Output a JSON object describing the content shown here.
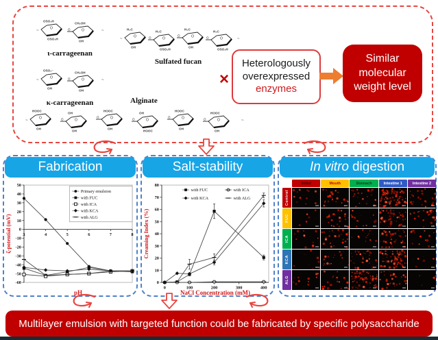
{
  "top": {
    "structures": [
      {
        "name": "iota-carrageenan",
        "label": "ι-carrageenan",
        "rings": 2,
        "top_labels": [
          "OSO₃H",
          "CH₂OH"
        ],
        "bottom_labels": [
          "OSO₃H",
          "OH"
        ]
      },
      {
        "name": "kappa-carrageenan",
        "label": "κ-carrageenan",
        "rings": 2,
        "top_labels": [
          "OSO₃⁻",
          "CH₂OH"
        ],
        "bottom_labels": [
          "OH",
          "OH"
        ]
      },
      {
        "name": "sulfated-fucan",
        "label": "Sulfated fucan",
        "rings": 4,
        "top_labels": [
          "H₃C",
          "H₃C",
          "H₃C",
          "H₃C"
        ],
        "bottom_labels": [
          "OH",
          "OSO₃H",
          "OH",
          "OSO₃H"
        ]
      },
      {
        "name": "alginate",
        "label": "Alginate",
        "rings": 6,
        "top_labels": [
          "HOOC",
          "OH",
          "HOOC",
          "OH",
          "HOOC",
          "HOOC"
        ],
        "bottom_labels": [
          "OH",
          "OH",
          "OH",
          "HOOC",
          "OH",
          "OH"
        ]
      }
    ],
    "cross": "×",
    "enzyme_box": {
      "line1": "Heterologously",
      "line2": "overexpressed",
      "line3": "enzymes"
    },
    "result_box": {
      "line1": "Similar",
      "line2": "molecular",
      "line3": "weight level"
    }
  },
  "panels": {
    "fabrication": {
      "title": "Fabrication"
    },
    "salt": {
      "title": "Salt-stability"
    },
    "digestion": {
      "title_italic": "In vitro",
      "title_rest": "digestion"
    }
  },
  "chart_data": [
    {
      "type": "line",
      "title": "",
      "xlabel": "pH",
      "ylabel": "ζ-potential (mV)",
      "x": [
        3,
        4,
        5,
        6,
        7,
        8
      ],
      "xticks": [
        3,
        4,
        5,
        6,
        7,
        8
      ],
      "xlim": [
        3,
        8
      ],
      "ylim": [
        -60,
        50
      ],
      "ytick_step": 10,
      "axis_at_zero": true,
      "grid": false,
      "legend": {
        "position": "top-right",
        "border": true,
        "columns": 1
      },
      "series": [
        {
          "name": "Primary emulsion",
          "marker": "circle",
          "values": [
            35,
            11,
            -16,
            -42,
            -47,
            -47
          ]
        },
        {
          "name": "with FUC",
          "marker": "square",
          "values": [
            -44,
            -52,
            -48,
            -43,
            -47,
            -48
          ]
        },
        {
          "name": "with ICA",
          "marker": "square-open",
          "values": [
            -51,
            -53,
            -51,
            -50,
            -48,
            -47
          ]
        },
        {
          "name": "with KCA",
          "marker": "diamond",
          "values": [
            -43,
            -46,
            -47,
            -45,
            -47,
            -47
          ]
        },
        {
          "name": "with ALG",
          "marker": "dash",
          "values": [
            -34,
            -52,
            -51,
            -50,
            -47,
            -47
          ]
        }
      ]
    },
    {
      "type": "line",
      "title": "",
      "xlabel": "NaCl Concentration (mM)",
      "ylabel": "Creaming Index (%)",
      "x": [
        0,
        50,
        100,
        200,
        400
      ],
      "xticks": [
        0,
        100,
        200,
        300,
        400
      ],
      "xlim": [
        -12,
        420
      ],
      "ylim": [
        0,
        80
      ],
      "ytick_step": 10,
      "axis_at_zero": false,
      "grid": false,
      "legend": {
        "position": "top",
        "border": false,
        "columns": 2
      },
      "series": [
        {
          "name": "with FUC",
          "marker": "square",
          "values": [
            0,
            0.5,
            6.5,
            58.5,
            20.5
          ],
          "err": [
            0,
            0,
            1,
            6,
            2
          ]
        },
        {
          "name": "with ICA",
          "marker": "circle-open",
          "values": [
            0,
            0,
            0,
            0.5,
            0.5
          ],
          "err": [
            0,
            0,
            0,
            0,
            0
          ]
        },
        {
          "name": "with KCA",
          "marker": "diamond",
          "values": [
            0,
            7.5,
            7,
            16.5,
            65
          ],
          "err": [
            0,
            0,
            1,
            2,
            3
          ]
        },
        {
          "name": "with ALG",
          "marker": "dash",
          "values": [
            0,
            0.5,
            15,
            20.5,
            71.5
          ],
          "err": [
            0,
            0,
            4,
            3,
            2
          ]
        }
      ]
    }
  ],
  "digestion_grid": {
    "columns": [
      {
        "label": "Initial",
        "bg": "#C00000",
        "fg": "#3a0505"
      },
      {
        "label": "Mouth",
        "bg": "#FFC000",
        "fg": "#C00000"
      },
      {
        "label": "Stomach",
        "bg": "#00B050",
        "fg": "#0b3d1d"
      },
      {
        "label": "Intestine 1",
        "bg": "#2F5BC4",
        "fg": "#ffffff"
      },
      {
        "label": "Intestine 2",
        "bg": "#7030A0",
        "fg": "#ffffff"
      }
    ],
    "rows": [
      {
        "label": "Control",
        "bg": "#C00000"
      },
      {
        "label": "FUC",
        "bg": "#FFC000"
      },
      {
        "label": "ICA",
        "bg": "#00B050"
      },
      {
        "label": "KCA",
        "bg": "#2E75B6"
      },
      {
        "label": "ALG",
        "bg": "#7030A0"
      }
    ],
    "fluorescence_density": [
      [
        12,
        22,
        22,
        85,
        26
      ],
      [
        5,
        22,
        12,
        50,
        22
      ],
      [
        10,
        26,
        12,
        38,
        16
      ],
      [
        6,
        16,
        38,
        70,
        4
      ],
      [
        12,
        22,
        60,
        30,
        4
      ]
    ]
  },
  "conclusion": {
    "text": "Multilayer emulsion with targeted function could be fabricated by specific polysaccharide"
  },
  "colors": {
    "accent_blue": "#17a5e6",
    "accent_red": "#c00000",
    "dashed_red": "#e8443f",
    "dashed_blue": "#4e81c8",
    "arrow_orange": "#ed7d31",
    "fluorescence_red": "#ff2000"
  }
}
